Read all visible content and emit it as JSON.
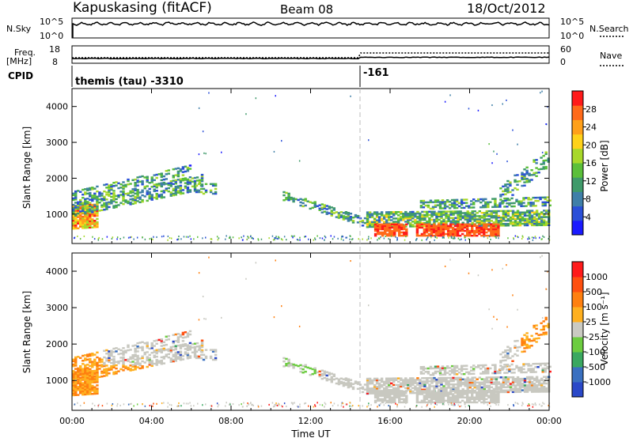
{
  "header": {
    "station": "Kapuskasing (fitACF)",
    "beam": "Beam 08",
    "date": "18/Oct/2012"
  },
  "side_labels": {
    "nsky": "N.Sky",
    "freq_line1": "Freq.",
    "freq_line2": "[MHz]",
    "cpid": "CPID",
    "nsearch": "N.Search",
    "nave": "Nave"
  },
  "small_ticks": {
    "nsky_left": [
      "10^5",
      "10^0"
    ],
    "nsky_right": [
      "10^5",
      "10^0"
    ],
    "freq_left": [
      "18",
      "8"
    ],
    "nave_right": [
      "60",
      "0"
    ]
  },
  "cpid_labels": {
    "first": "themis (tau) -3310",
    "second": "-161"
  },
  "chart_data": [
    {
      "type": "heatmap",
      "panel": "power",
      "xlabel": "",
      "ylabel": "Slant Range [km]",
      "x_range_hours": [
        0,
        24
      ],
      "ylim_km": [
        180,
        4500
      ],
      "y_ticks": [
        "1000",
        "2000",
        "3000",
        "4000"
      ],
      "colorbar": {
        "label": "Power [dB]",
        "ticks": [
          "28",
          "24",
          "20",
          "16",
          "12",
          "8",
          "4"
        ],
        "colors": [
          "#1a1aff",
          "#2a4fd8",
          "#3f7fa8",
          "#3f9a6a",
          "#5bbf3a",
          "#a8d82a",
          "#ffd21a",
          "#ffa01a",
          "#ff6a1a",
          "#ff1a1a"
        ]
      },
      "grid": false
    },
    {
      "type": "heatmap",
      "panel": "velocity",
      "xlabel": "Time UT",
      "ylabel": "Slant Range [km]",
      "x_range_hours": [
        0,
        24
      ],
      "x_ticks": [
        "00:00",
        "04:00",
        "08:00",
        "12:00",
        "16:00",
        "20:00",
        "00:00"
      ],
      "ylim_km": [
        180,
        4500
      ],
      "y_ticks": [
        "1000",
        "2000",
        "3000",
        "4000"
      ],
      "colorbar": {
        "label": "Velocity [m s⁻¹]",
        "ticks": [
          "1000",
          "500",
          "100",
          "25",
          "-25",
          "-100",
          "-500",
          "-1000"
        ],
        "colors": [
          "#2a48c8",
          "#3a70c0",
          "#3aa860",
          "#6ccc40",
          "#cacac2",
          "#ffb020",
          "#ff8010",
          "#ff5010",
          "#ff1a1a"
        ]
      },
      "grid": false
    }
  ],
  "colors": {
    "ground_scatter": "#c8c8c0",
    "dashed_marker": "#bbbbbb"
  }
}
